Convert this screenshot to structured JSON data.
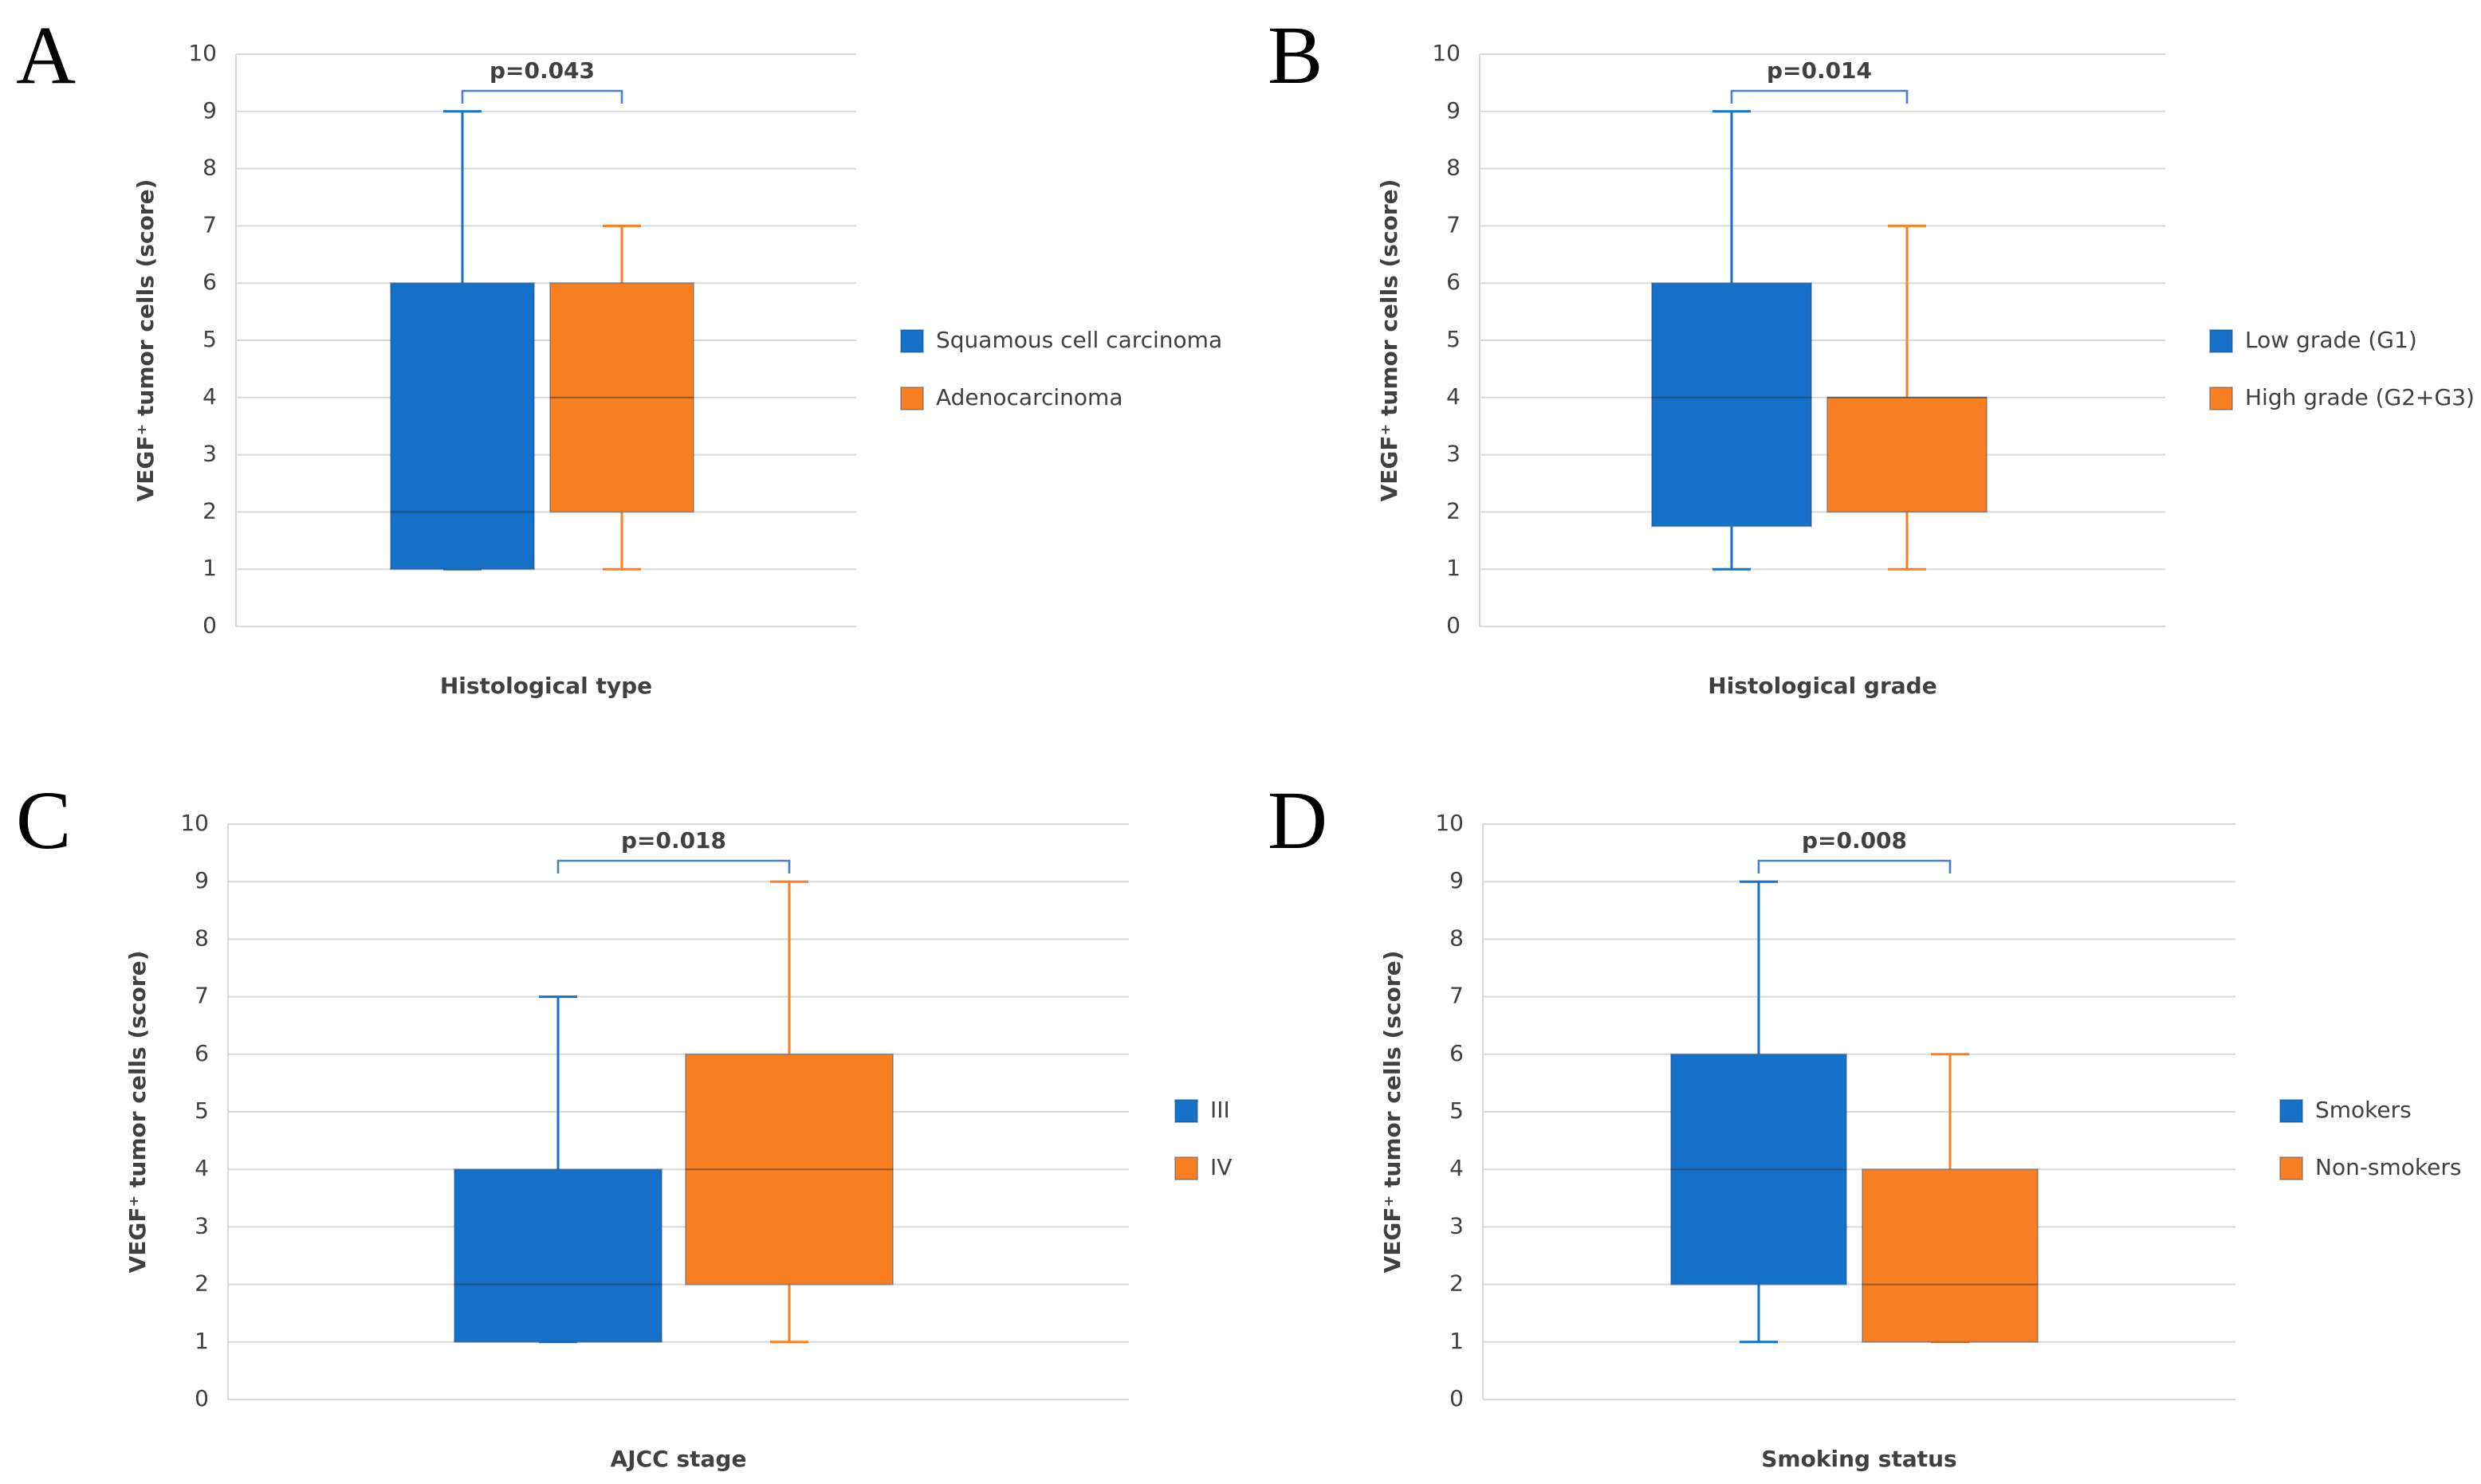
{
  "chart_data": [
    {
      "type": "box",
      "panel": "A",
      "annotation": "p=0.043",
      "xlabel": "Histological type",
      "ylabel": "VEGF⁺ tumor cells (score)",
      "ylim": [
        0,
        10
      ],
      "yticks": [
        0,
        1,
        2,
        3,
        4,
        5,
        6,
        7,
        8,
        9,
        10
      ],
      "grid": true,
      "legend": "right",
      "series": [
        {
          "name": "Squamous cell carcinoma",
          "color": "#1570c8",
          "min": 1,
          "q1": 1,
          "median": 2,
          "q3": 6,
          "max": 9
        },
        {
          "name": "Adenocarcinoma",
          "color": "#f97f23",
          "min": 1,
          "q1": 2,
          "median": 4,
          "q3": 6,
          "max": 7
        }
      ]
    },
    {
      "type": "box",
      "panel": "B",
      "annotation": "p=0.014",
      "xlabel": "Histological grade",
      "ylabel": "VEGF⁺ tumor cells (score)",
      "ylim": [
        0,
        10
      ],
      "yticks": [
        0,
        1,
        2,
        3,
        4,
        5,
        6,
        7,
        8,
        9,
        10
      ],
      "grid": true,
      "legend": "right",
      "series": [
        {
          "name": "Low grade (G1)",
          "color": "#1570c8",
          "min": 1,
          "q1": 1.75,
          "median": 4,
          "q3": 6,
          "max": 9
        },
        {
          "name": "High grade (G2+G3)",
          "color": "#f97f23",
          "min": 1,
          "q1": 2,
          "median": 4,
          "q3": 4,
          "max": 7
        }
      ]
    },
    {
      "type": "box",
      "panel": "C",
      "annotation": "p=0.018",
      "xlabel": "AJCC stage",
      "ylabel": "VEGF⁺ tumor cells (score)",
      "ylim": [
        0,
        10
      ],
      "yticks": [
        0,
        1,
        2,
        3,
        4,
        5,
        6,
        7,
        8,
        9,
        10
      ],
      "grid": true,
      "legend": "right",
      "series": [
        {
          "name": "III",
          "color": "#1570c8",
          "min": 1,
          "q1": 1,
          "median": 2,
          "q3": 4,
          "max": 7
        },
        {
          "name": "IV",
          "color": "#f97f23",
          "min": 1,
          "q1": 2,
          "median": 4,
          "q3": 6,
          "max": 9
        }
      ]
    },
    {
      "type": "box",
      "panel": "D",
      "annotation": "p=0.008",
      "xlabel": "Smoking status",
      "ylabel": "VEGF⁺ tumor cells (score)",
      "ylim": [
        0,
        10
      ],
      "yticks": [
        0,
        1,
        2,
        3,
        4,
        5,
        6,
        7,
        8,
        9,
        10
      ],
      "grid": true,
      "legend": "right",
      "series": [
        {
          "name": "Smokers",
          "color": "#1570c8",
          "min": 1,
          "q1": 2,
          "median": 4,
          "q3": 6,
          "max": 9
        },
        {
          "name": "Non-smokers",
          "color": "#f97f23",
          "min": 1,
          "q1": 1,
          "median": 2,
          "q3": 4,
          "max": 6
        }
      ]
    }
  ]
}
